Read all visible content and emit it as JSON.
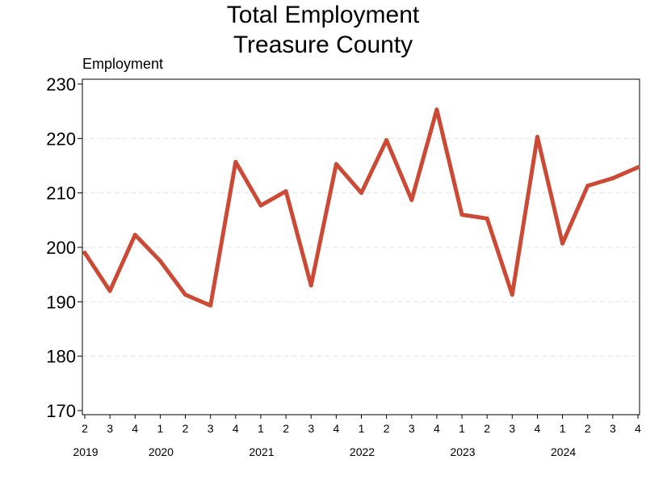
{
  "chart_data": {
    "type": "line",
    "title": "Total Employment",
    "subtitle": "Treasure County",
    "ylabel": "Employment",
    "xlabel": "",
    "ylim": [
      170,
      230
    ],
    "yticks": [
      170,
      180,
      190,
      200,
      210,
      220,
      230
    ],
    "grid": "horizontal dashed",
    "colors": {
      "line": "#cc4a35"
    },
    "x": [
      "2019 Q2",
      "2019 Q3",
      "2019 Q4",
      "2020 Q1",
      "2020 Q2",
      "2020 Q3",
      "2020 Q4",
      "2021 Q1",
      "2021 Q2",
      "2021 Q3",
      "2021 Q4",
      "2022 Q1",
      "2022 Q2",
      "2022 Q3",
      "2022 Q4",
      "2023 Q1",
      "2023 Q2",
      "2023 Q3",
      "2023 Q4",
      "2024 Q1",
      "2024 Q2",
      "2024 Q3",
      "2024 Q4"
    ],
    "quarter_labels": [
      "2",
      "3",
      "4",
      "1",
      "2",
      "3",
      "4",
      "1",
      "2",
      "3",
      "4",
      "1",
      "2",
      "3",
      "4",
      "1",
      "2",
      "3",
      "4",
      "1",
      "2",
      "3",
      "4"
    ],
    "year_labels": [
      {
        "label": "2019",
        "index": 0
      },
      {
        "label": "2020",
        "index": 3
      },
      {
        "label": "2021",
        "index": 7
      },
      {
        "label": "2022",
        "index": 11
      },
      {
        "label": "2023",
        "index": 15
      },
      {
        "label": "2024",
        "index": 19
      }
    ],
    "series": [
      {
        "values": [
          199,
          192,
          202.3,
          197.5,
          191.3,
          189.3,
          215.7,
          207.7,
          210.3,
          193,
          215.3,
          210,
          219.7,
          208.7,
          225.3,
          206,
          205.3,
          191.3,
          220.3,
          200.7,
          211.3,
          212.7,
          214.7
        ]
      }
    ]
  }
}
